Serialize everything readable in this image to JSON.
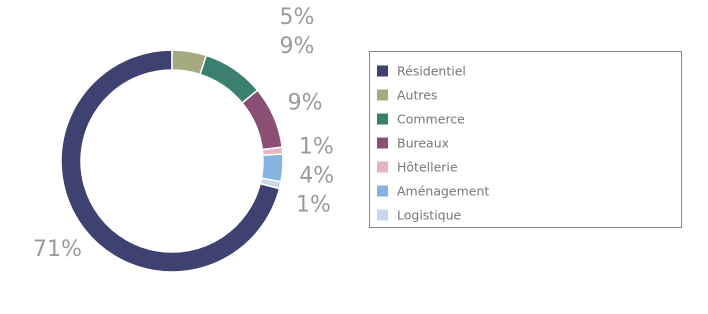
{
  "chart_data": {
    "type": "donut",
    "categories": [
      "Résidentiel",
      "Autres",
      "Commerce",
      "Bureaux",
      "Hôtellerie",
      "Aménagement",
      "Logistique"
    ],
    "values": [
      71,
      5,
      9,
      9,
      1,
      4,
      1
    ],
    "value_labels": [
      "71%",
      "5%",
      "9%",
      "9%",
      "1%",
      "4%",
      "1%"
    ],
    "colors": [
      "#3e4270",
      "#a6ab7f",
      "#3b7f70",
      "#8a4f72",
      "#e4b6c4",
      "#86b3e0",
      "#c6d7ee"
    ],
    "legend": "right"
  }
}
